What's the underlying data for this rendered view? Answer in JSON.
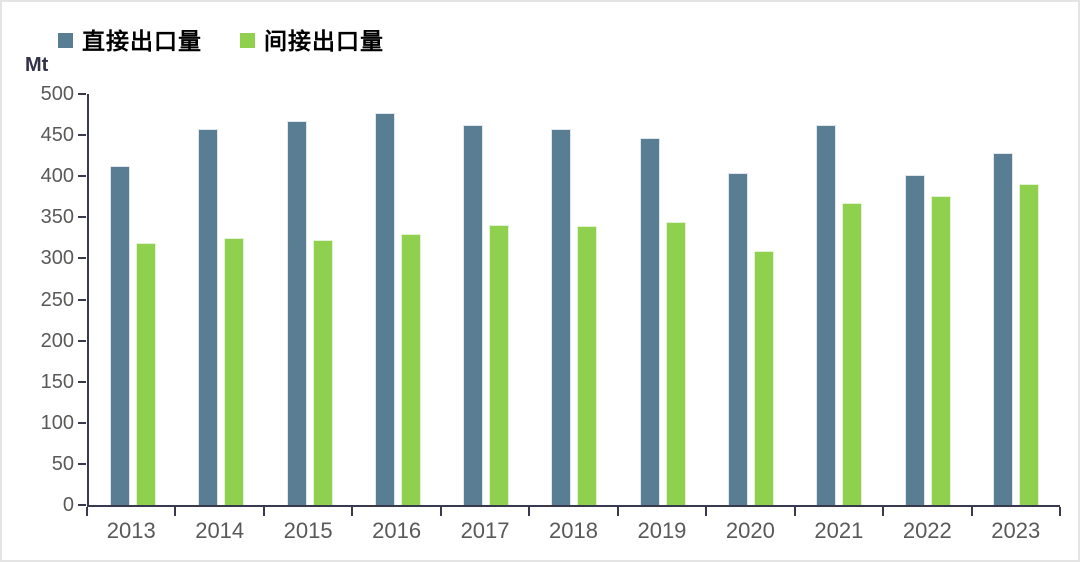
{
  "chart_data": {
    "type": "bar",
    "unit_label": "Mt",
    "categories": [
      "2013",
      "2014",
      "2015",
      "2016",
      "2017",
      "2018",
      "2019",
      "2020",
      "2021",
      "2022",
      "2023"
    ],
    "series": [
      {
        "id": "direct",
        "name": "直接出口量",
        "color": "#597d92",
        "values": [
          413,
          457,
          467,
          477,
          462,
          458,
          446,
          404,
          462,
          401,
          428
        ]
      },
      {
        "id": "indirect",
        "name": "间接出口量",
        "color": "#8fd04e",
        "values": [
          319,
          325,
          322,
          330,
          341,
          339,
          344,
          309,
          368,
          376,
          391
        ]
      }
    ],
    "ylim": [
      0,
      500
    ],
    "yticks": [
      0,
      50,
      100,
      150,
      200,
      250,
      300,
      350,
      400,
      450,
      500
    ],
    "grid": false,
    "legend_position": "top-left",
    "axis_color": "#39394e",
    "tick_label_color": "#595959"
  }
}
